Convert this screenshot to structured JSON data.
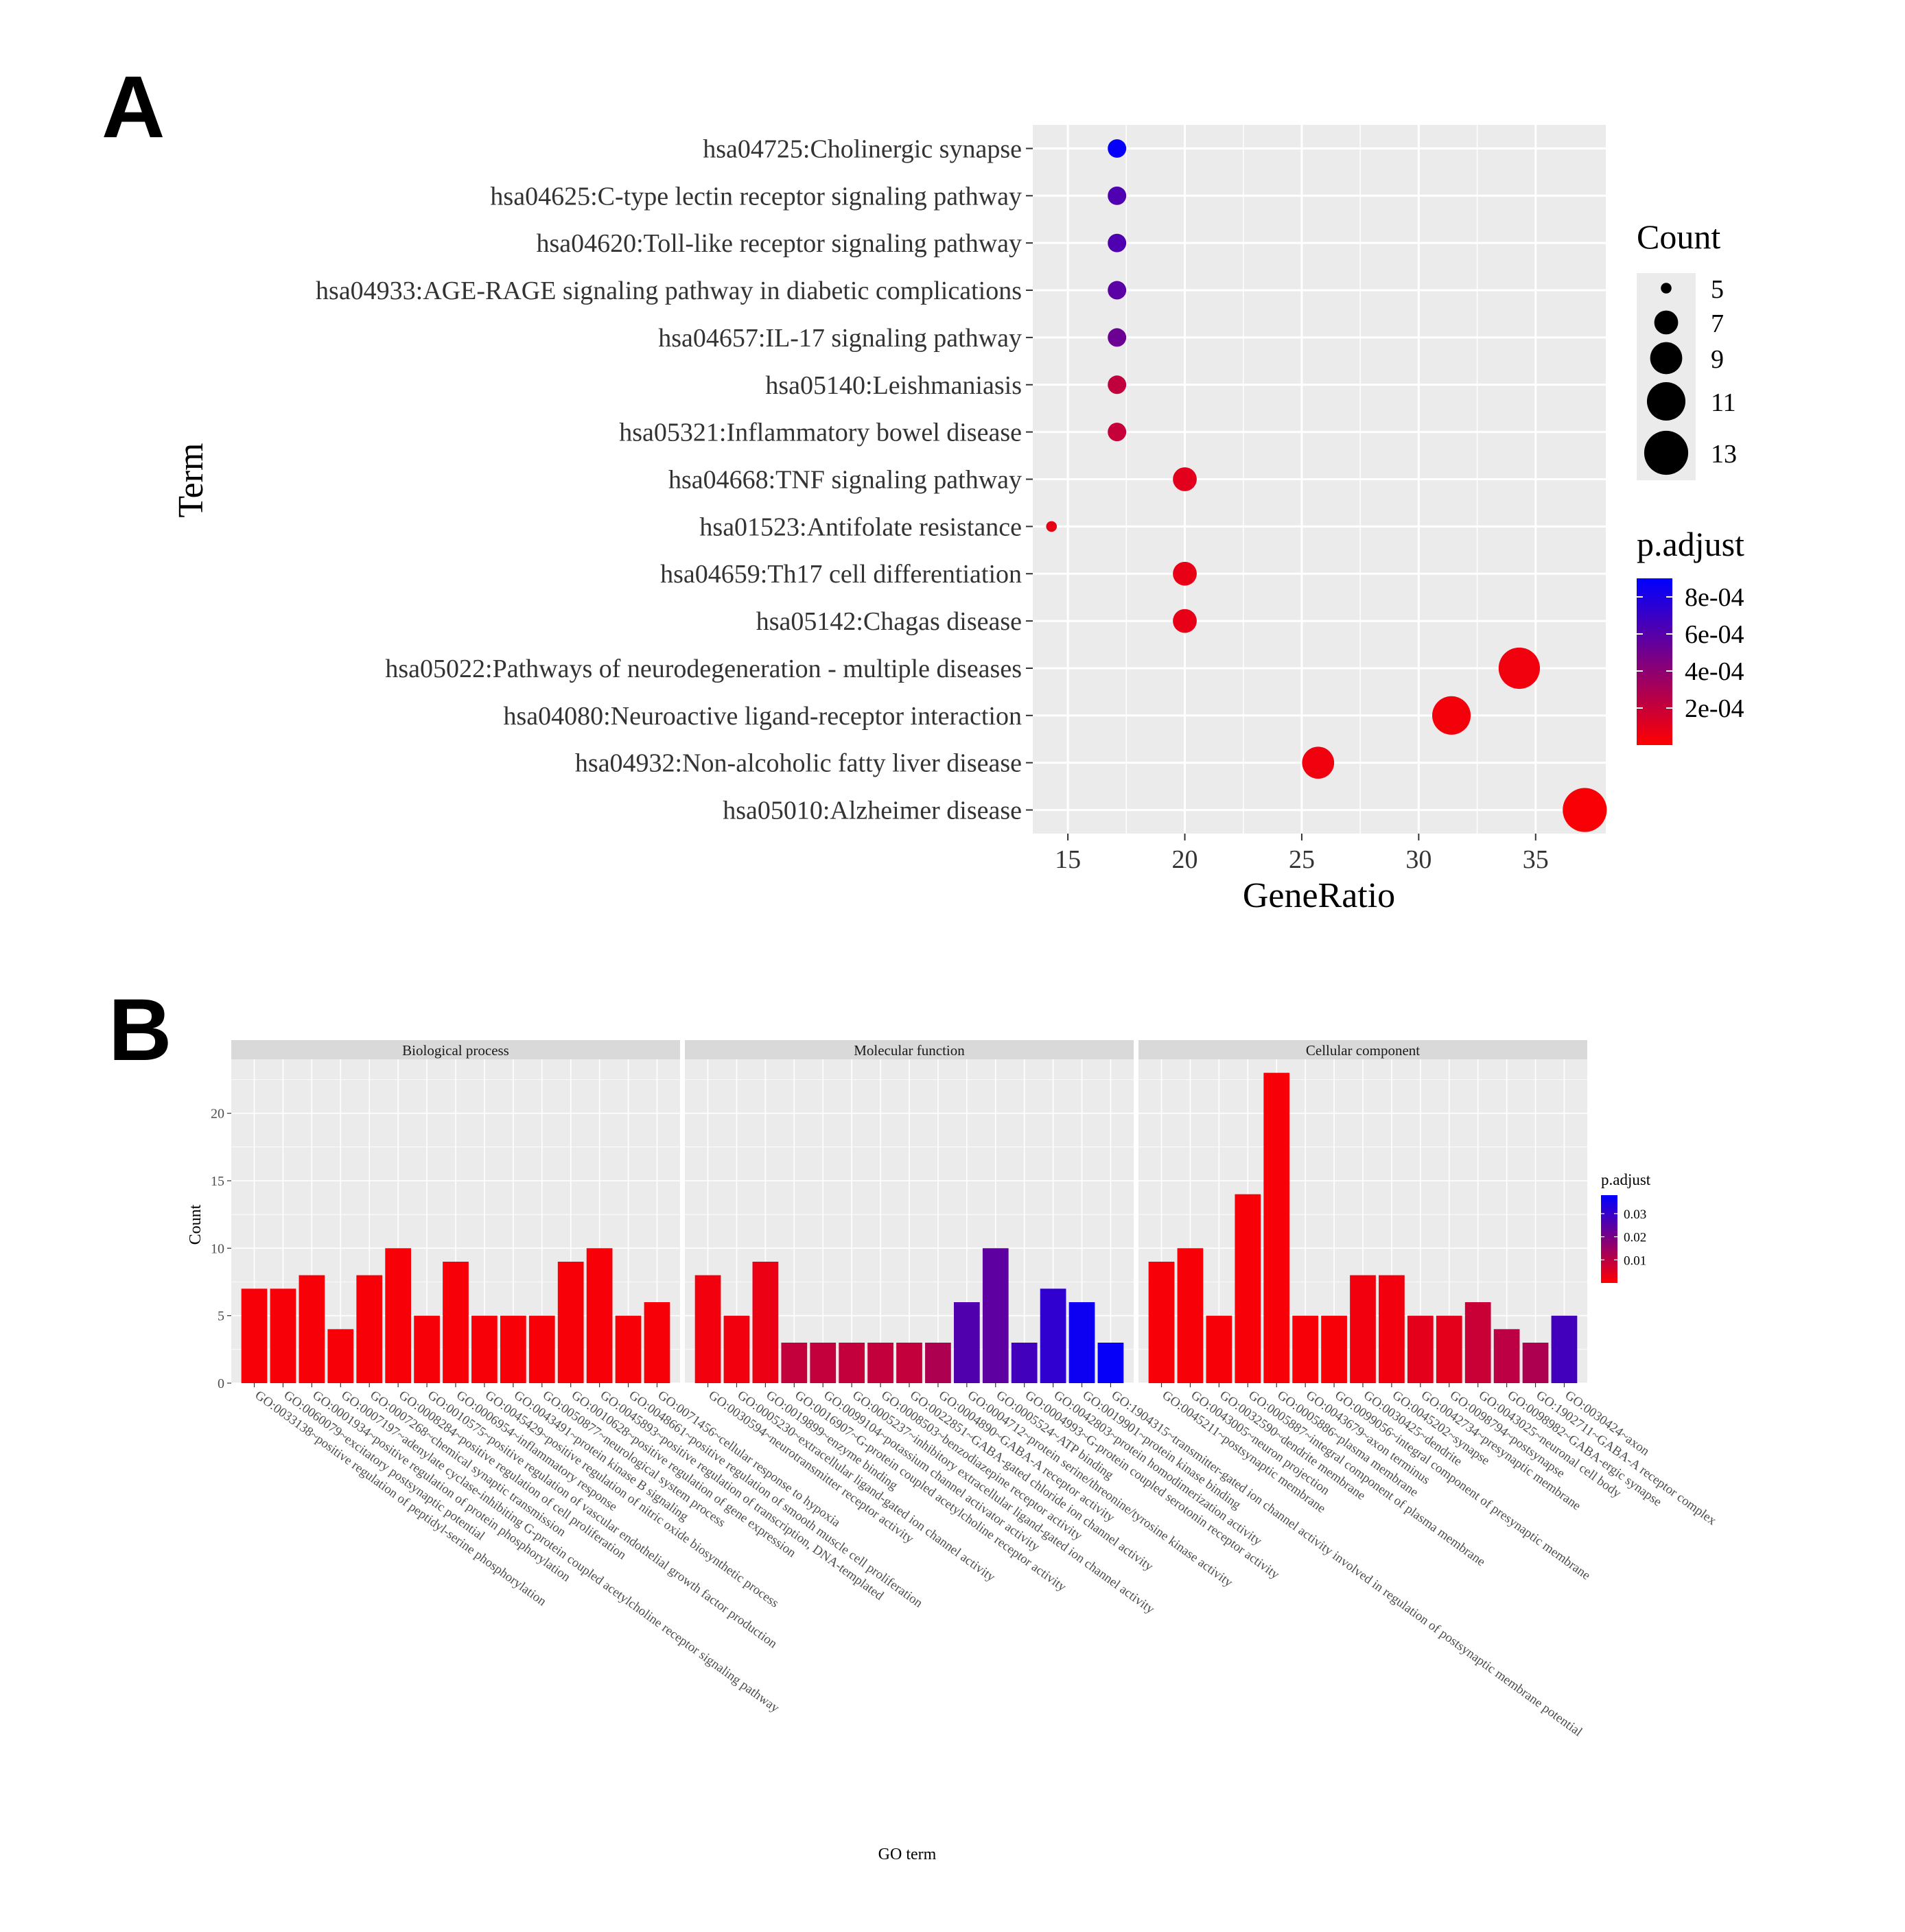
{
  "panel_labels": {
    "a": "A",
    "b": "B"
  },
  "chart_data": [
    {
      "type": "scatter",
      "panel": "A",
      "xlabel": "GeneRatio",
      "ylabel": "Term",
      "xlim": [
        13.5,
        38
      ],
      "xticks": [
        15,
        20,
        25,
        30,
        35
      ],
      "grid": true,
      "terms": [
        "hsa04725:Cholinergic synapse",
        "hsa04625:C-type lectin receptor signaling pathway",
        "hsa04620:Toll-like receptor signaling pathway",
        "hsa04933:AGE-RAGE signaling pathway in diabetic complications",
        "hsa04657:IL-17 signaling pathway",
        "hsa05140:Leishmaniasis",
        "hsa05321:Inflammatory bowel disease",
        "hsa04668:TNF signaling pathway",
        "hsa01523:Antifolate resistance",
        "hsa04659:Th17 cell differentiation",
        "hsa05142:Chagas disease",
        "hsa05022:Pathways of neurodegeneration - multiple diseases",
        "hsa04080:Neuroactive ligand-receptor interaction",
        "hsa04932:Non-alcoholic fatty liver disease",
        "hsa05010:Alzheimer disease"
      ],
      "gene_ratio": [
        17.1,
        17.1,
        17.1,
        17.1,
        17.1,
        17.1,
        17.1,
        20.0,
        14.3,
        20.0,
        20.0,
        34.3,
        31.4,
        25.7,
        37.1
      ],
      "count": [
        6,
        6,
        6,
        6,
        6,
        6,
        6,
        7,
        5,
        7,
        7,
        12,
        11,
        9,
        13
      ],
      "p_adjust": [
        0.00088,
        0.00062,
        0.00062,
        0.00058,
        0.00052,
        0.00022,
        0.0002,
        0.0001,
        8e-05,
        8e-05,
        8e-05,
        5e-05,
        4e-05,
        5e-05,
        2e-05
      ],
      "legend_count": {
        "title": "Count",
        "values": [
          5,
          7,
          9,
          11,
          13
        ],
        "labels": [
          "5",
          "7",
          "9",
          "11",
          "13"
        ]
      },
      "legend_color": {
        "title": "p.adjust",
        "range": [
          0,
          0.0009
        ],
        "ticks": [
          0.0008,
          0.0006,
          0.0004,
          0.0002
        ],
        "tick_labels": [
          "8e-04",
          "6e-04",
          "4e-04",
          "2e-04"
        ],
        "low_color": "#ff0000",
        "high_color": "#0000ff"
      }
    },
    {
      "type": "bar",
      "panel": "B",
      "xlabel": "GO term",
      "ylabel": "Count",
      "ylim": [
        0,
        24
      ],
      "yticks": [
        0,
        5,
        10,
        15,
        20
      ],
      "grid": true,
      "facets": [
        {
          "name": "Biological process",
          "categories": [
            "GO:0033138~positive regulation of peptidyl-serine phosphorylation",
            "GO:0060079~excitatory postsynaptic potential",
            "GO:0001934~positive regulation of protein phosphorylation",
            "GO:0007197~adenylate cyclase-inhibiting G-protein coupled acetylcholine receptor signaling pathway",
            "GO:0007268~chemical synaptic transmission",
            "GO:0008284~positive regulation of cell proliferation",
            "GO:0010575~positive regulation of vascular endothelial growth factor production",
            "GO:0006954~inflammatory response",
            "GO:0045429~positive regulation of nitric oxide biosynthetic process",
            "GO:0043491~protein kinase B signaling",
            "GO:0050877~neurological system process",
            "GO:0010628~positive regulation of gene expression",
            "GO:0045893~positive regulation of transcription, DNA-templated",
            "GO:0048661~positive regulation of smooth muscle cell proliferation",
            "GO:0071456~cellular response to hypoxia"
          ],
          "values": [
            7,
            7,
            8,
            4,
            8,
            10,
            5,
            9,
            5,
            5,
            5,
            9,
            10,
            5,
            6
          ],
          "p_adjust": [
            0.001,
            0.001,
            0.001,
            0.001,
            0.001,
            0.001,
            0.001,
            0.001,
            0.001,
            0.001,
            0.001,
            0.001,
            0.001,
            0.001,
            0.001
          ]
        },
        {
          "name": "Molecular function",
          "categories": [
            "GO:0030594~neurotransmitter receptor activity",
            "GO:0005230~extracellular ligand-gated ion channel activity",
            "GO:0019899~enzyme binding",
            "GO:0016907~G-protein coupled acetylcholine receptor activity",
            "GO:0099104~potassium channel activator activity",
            "GO:0005237~inhibitory extracellular ligand-gated ion channel activity",
            "GO:0008503~benzodiazepine receptor activity",
            "GO:0022851~GABA-gated chloride ion channel activity",
            "GO:0004890~GABA-A receptor activity",
            "GO:0004712~protein serine/threonine/tyrosine kinase activity",
            "GO:0005524~ATP binding",
            "GO:0004993~G-protein coupled serotonin receptor activity",
            "GO:0042803~protein homodimerization activity",
            "GO:0019901~protein kinase binding",
            "GO:1904315~transmitter-gated ion channel activity involved in regulation of postsynaptic membrane potential"
          ],
          "values": [
            8,
            5,
            9,
            3,
            3,
            3,
            3,
            3,
            3,
            6,
            10,
            3,
            7,
            6,
            3
          ],
          "p_adjust": [
            0.002,
            0.002,
            0.003,
            0.009,
            0.009,
            0.009,
            0.009,
            0.009,
            0.012,
            0.026,
            0.024,
            0.028,
            0.031,
            0.036,
            0.037
          ]
        },
        {
          "name": "Cellular component",
          "categories": [
            "GO:0045211~postsynaptic membrane",
            "GO:0043005~neuron projection",
            "GO:0032590~dendrite membrane",
            "GO:0005887~integral component of plasma membrane",
            "GO:0005886~plasma membrane",
            "GO:0043679~axon terminus",
            "GO:0099056~integral component of presynaptic membrane",
            "GO:0030425~dendrite",
            "GO:0045202~synapse",
            "GO:0042734~presynaptic membrane",
            "GO:0098794~postsynapse",
            "GO:0043025~neuronal cell body",
            "GO:0098982~GABA-ergic synapse",
            "GO:1902711~GABA-A receptor complex",
            "GO:0030424~axon"
          ],
          "values": [
            9,
            10,
            5,
            14,
            23,
            5,
            5,
            8,
            8,
            5,
            5,
            6,
            4,
            3,
            5
          ],
          "p_adjust": [
            0.001,
            0.001,
            0.001,
            0.001,
            0.001,
            0.001,
            0.001,
            0.002,
            0.002,
            0.004,
            0.004,
            0.008,
            0.01,
            0.012,
            0.028
          ]
        }
      ],
      "legend_color": {
        "title": "p.adjust",
        "range": [
          0,
          0.038
        ],
        "ticks": [
          0.03,
          0.02,
          0.01
        ],
        "tick_labels": [
          "0.03",
          "0.02",
          "0.01"
        ],
        "low_color": "#ff0000",
        "high_color": "#0000ff"
      }
    }
  ]
}
